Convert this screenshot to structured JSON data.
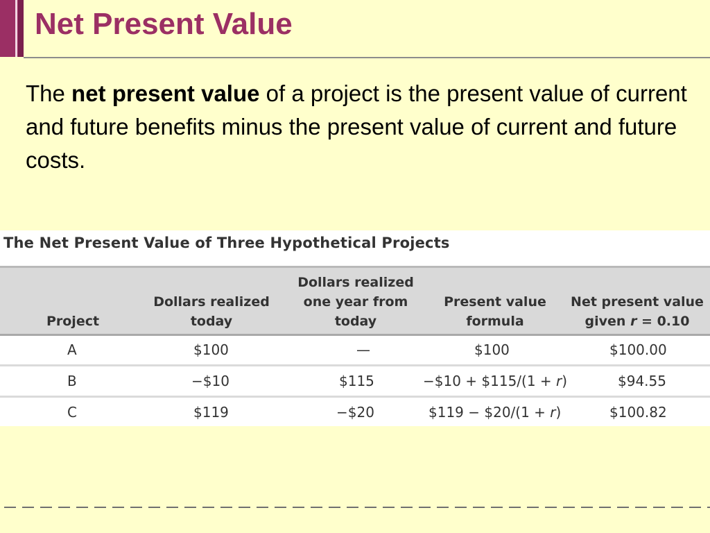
{
  "slide": {
    "title": "Net Present Value",
    "paragraph": {
      "pre": "The ",
      "bold": "net present value",
      "post": " of a project is the present value of current and future benefits minus the present value of current and future costs."
    }
  },
  "table": {
    "caption": "The Net Present Value of Three Hypothetical Projects",
    "headers": {
      "project": "Project",
      "today_line1": "Dollars realized",
      "today_line2": "today",
      "future_line1": "Dollars realized",
      "future_line2": "one year from",
      "future_line3": "today",
      "formula_line1": "Present value",
      "formula_line2": "formula",
      "npv_line1": "Net present value",
      "npv_line2_pre": "given ",
      "npv_line2_var": "r",
      "npv_line2_post": " = 0.10"
    },
    "rows": [
      {
        "project": "A",
        "today": "$100",
        "future": "—",
        "formula_pre": "$100",
        "formula_var": "",
        "formula_post": "",
        "npv": "$100.00"
      },
      {
        "project": "B",
        "today": "−$10",
        "future": "$115",
        "formula_pre": "−$10 + $115/(1 + ",
        "formula_var": "r",
        "formula_post": ")",
        "npv": "$94.55"
      },
      {
        "project": "C",
        "today": "$119",
        "future": "−$20",
        "formula_pre": "$119 − $20/(1 + ",
        "formula_var": "r",
        "formula_post": ")",
        "npv": "$100.82"
      }
    ]
  },
  "colors": {
    "background": "#ffffcc",
    "title": "#9b2f64",
    "accent_bar": "#7a1f4d",
    "table_header": "#d9d9d9"
  }
}
